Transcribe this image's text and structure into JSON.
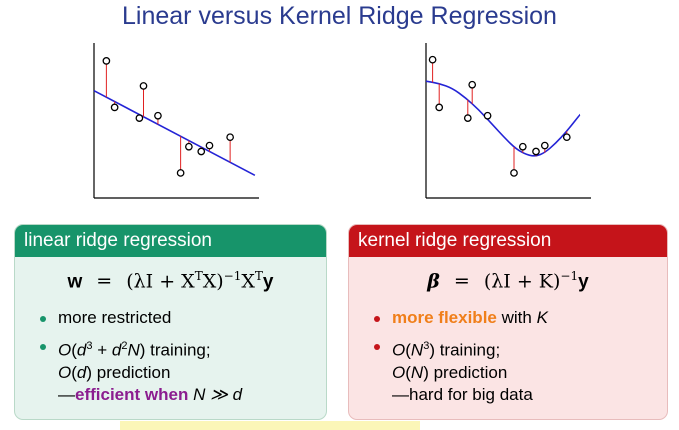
{
  "title": "Linear versus Kernel Ridge Regression",
  "linear_box": {
    "header": "linear ridge regression",
    "formula_lhs": "w",
    "formula_eq": "=",
    "formula_rhs_a": "(λI + X",
    "formula_rhs_b": "T",
    "formula_rhs_c": "X)",
    "formula_rhs_d": "−1",
    "formula_rhs_e": "X",
    "formula_rhs_f": "T",
    "formula_rhs_g": "y",
    "bullet1": "more restricted",
    "bullet2_a": "O",
    "bullet2_b": "(",
    "bullet2_c": "d",
    "bullet2_d": "3",
    "bullet2_e": " + ",
    "bullet2_f": "d",
    "bullet2_g": "2",
    "bullet2_h": "N",
    "bullet2_i": ") training;",
    "bullet2_line2_a": "O",
    "bullet2_line2_b": "(",
    "bullet2_line2_c": "d",
    "bullet2_line2_d": ") prediction",
    "bullet2_line3_a": "—",
    "bullet2_line3_b": "efficient when ",
    "bullet2_line3_c": "N ≫ d"
  },
  "kernel_box": {
    "header": "kernel ridge regression",
    "formula_lhs": "β",
    "formula_eq": "=",
    "formula_rhs_a": "(λI + K)",
    "formula_rhs_b": "−1",
    "formula_rhs_c": "y",
    "bullet1_a": "more flexible",
    "bullet1_b": " with ",
    "bullet1_c": "K",
    "bullet2_a": "O",
    "bullet2_b": "(",
    "bullet2_c": "N",
    "bullet2_d": "3",
    "bullet2_e": ") training;",
    "bullet2_line2_a": "O",
    "bullet2_line2_b": "(",
    "bullet2_line2_c": "N",
    "bullet2_line2_d": ") prediction",
    "bullet2_line3": "—hard for big data"
  },
  "plots": {
    "left": {
      "fit": "line",
      "points": [
        [
          0.6,
          11.5
        ],
        [
          1.0,
          7.6
        ],
        [
          2.2,
          6.7
        ],
        [
          2.4,
          9.4
        ],
        [
          3.1,
          6.9
        ],
        [
          4.2,
          2.1
        ],
        [
          4.6,
          4.3
        ],
        [
          5.2,
          3.9
        ],
        [
          5.6,
          4.4
        ],
        [
          6.6,
          5.1
        ]
      ],
      "fit_line": [
        [
          0.0,
          9.0
        ],
        [
          7.8,
          1.9
        ]
      ],
      "xlim": [
        0,
        8
      ],
      "ylim": [
        0,
        13
      ]
    },
    "right": {
      "fit": "curve",
      "points": [
        [
          0.3,
          11.6
        ],
        [
          0.6,
          7.6
        ],
        [
          1.9,
          6.7
        ],
        [
          2.1,
          9.5
        ],
        [
          2.8,
          6.9
        ],
        [
          4.0,
          2.1
        ],
        [
          4.4,
          4.3
        ],
        [
          5.0,
          3.9
        ],
        [
          5.4,
          4.4
        ],
        [
          6.4,
          5.1
        ]
      ],
      "fit_curve": [
        [
          0,
          9.8
        ],
        [
          0.6,
          9.6
        ],
        [
          1.2,
          9.2
        ],
        [
          1.8,
          8.4
        ],
        [
          2.4,
          7.4
        ],
        [
          3.0,
          6.2
        ],
        [
          3.6,
          5.0
        ],
        [
          4.1,
          4.1
        ],
        [
          4.6,
          3.6
        ],
        [
          5.0,
          3.5
        ],
        [
          5.4,
          3.8
        ],
        [
          5.9,
          4.6
        ],
        [
          6.4,
          5.6
        ],
        [
          7.0,
          7.0
        ]
      ],
      "xlim": [
        0,
        7.5
      ],
      "ylim": [
        0,
        13
      ]
    },
    "colors": {
      "axes": "#000000",
      "fit": "#2424d6",
      "residual": "#e02020",
      "point": "#000000"
    }
  }
}
